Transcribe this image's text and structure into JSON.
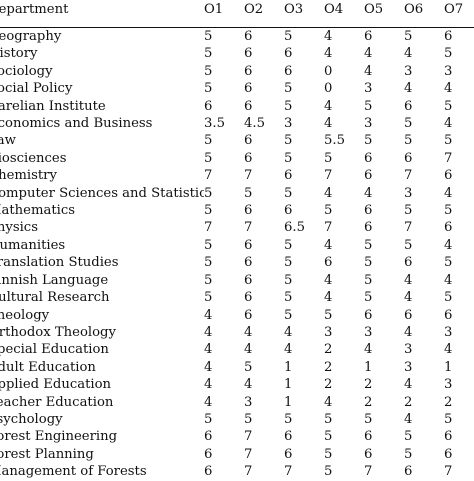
{
  "table": {
    "columns": [
      "Department",
      "O1",
      "O2",
      "O3",
      "O4",
      "O5",
      "O6",
      "O7"
    ],
    "rows": [
      {
        "dept": "Geography",
        "values": [
          "5",
          "6",
          "5",
          "4",
          "6",
          "5",
          "6"
        ]
      },
      {
        "dept": "History",
        "values": [
          "5",
          "6",
          "6",
          "4",
          "4",
          "4",
          "5"
        ]
      },
      {
        "dept": "Sociology",
        "values": [
          "5",
          "6",
          "6",
          "0",
          "4",
          "3",
          "3"
        ]
      },
      {
        "dept": "Social Policy",
        "values": [
          "5",
          "6",
          "5",
          "0",
          "3",
          "4",
          "4"
        ]
      },
      {
        "dept": "Karelian Institute",
        "values": [
          "6",
          "6",
          "5",
          "4",
          "5",
          "6",
          "5"
        ]
      },
      {
        "dept": "Economics and Business",
        "values": [
          "3.5",
          "4.5",
          "3",
          "4",
          "3",
          "5",
          "4"
        ]
      },
      {
        "dept": "Law",
        "values": [
          "5",
          "6",
          "5",
          "5.5",
          "5",
          "5",
          "5"
        ]
      },
      {
        "dept": "Biosciences",
        "values": [
          "5",
          "6",
          "5",
          "5",
          "6",
          "6",
          "7"
        ]
      },
      {
        "dept": "Chemistry",
        "values": [
          "7",
          "7",
          "6",
          "7",
          "6",
          "7",
          "6"
        ]
      },
      {
        "dept": "Computer Sciences and Statistics",
        "values": [
          "5",
          "5",
          "5",
          "4",
          "4",
          "3",
          "4"
        ]
      },
      {
        "dept": "Mathematics",
        "values": [
          "5",
          "6",
          "6",
          "5",
          "6",
          "5",
          "5"
        ]
      },
      {
        "dept": "Physics",
        "values": [
          "7",
          "7",
          "6.5",
          "7",
          "6",
          "7",
          "6"
        ]
      },
      {
        "dept": "Humanities",
        "values": [
          "5",
          "6",
          "5",
          "4",
          "5",
          "5",
          "4"
        ]
      },
      {
        "dept": "Translation Studies",
        "values": [
          "5",
          "6",
          "5",
          "6",
          "5",
          "6",
          "5"
        ]
      },
      {
        "dept": "Finnish Language",
        "values": [
          "5",
          "6",
          "5",
          "4",
          "5",
          "4",
          "4"
        ]
      },
      {
        "dept": "Cultural Research",
        "values": [
          "5",
          "6",
          "5",
          "4",
          "5",
          "4",
          "5"
        ]
      },
      {
        "dept": "Theology",
        "values": [
          "4",
          "6",
          "5",
          "5",
          "6",
          "6",
          "6"
        ]
      },
      {
        "dept": "Orthodox Theology",
        "values": [
          "4",
          "4",
          "4",
          "3",
          "3",
          "4",
          "3"
        ]
      },
      {
        "dept": "Special Education",
        "values": [
          "4",
          "4",
          "4",
          "2",
          "4",
          "3",
          "4"
        ]
      },
      {
        "dept": "Adult Education",
        "values": [
          "4",
          "5",
          "1",
          "2",
          "1",
          "3",
          "1"
        ]
      },
      {
        "dept": "Applied Education",
        "values": [
          "4",
          "4",
          "1",
          "2",
          "2",
          "4",
          "3"
        ]
      },
      {
        "dept": "Teacher Education",
        "values": [
          "4",
          "3",
          "1",
          "4",
          "2",
          "2",
          "2"
        ]
      },
      {
        "dept": "Psychology",
        "values": [
          "5",
          "5",
          "5",
          "5",
          "5",
          "4",
          "5"
        ]
      },
      {
        "dept": "Forest Engineering",
        "values": [
          "6",
          "7",
          "6",
          "5",
          "6",
          "5",
          "6"
        ]
      },
      {
        "dept": "Forest Planning",
        "values": [
          "6",
          "7",
          "6",
          "5",
          "6",
          "5",
          "6"
        ]
      },
      {
        "dept": "Management of Forests",
        "values": [
          "6",
          "7",
          "7",
          "5",
          "7",
          "6",
          "7"
        ]
      }
    ]
  }
}
